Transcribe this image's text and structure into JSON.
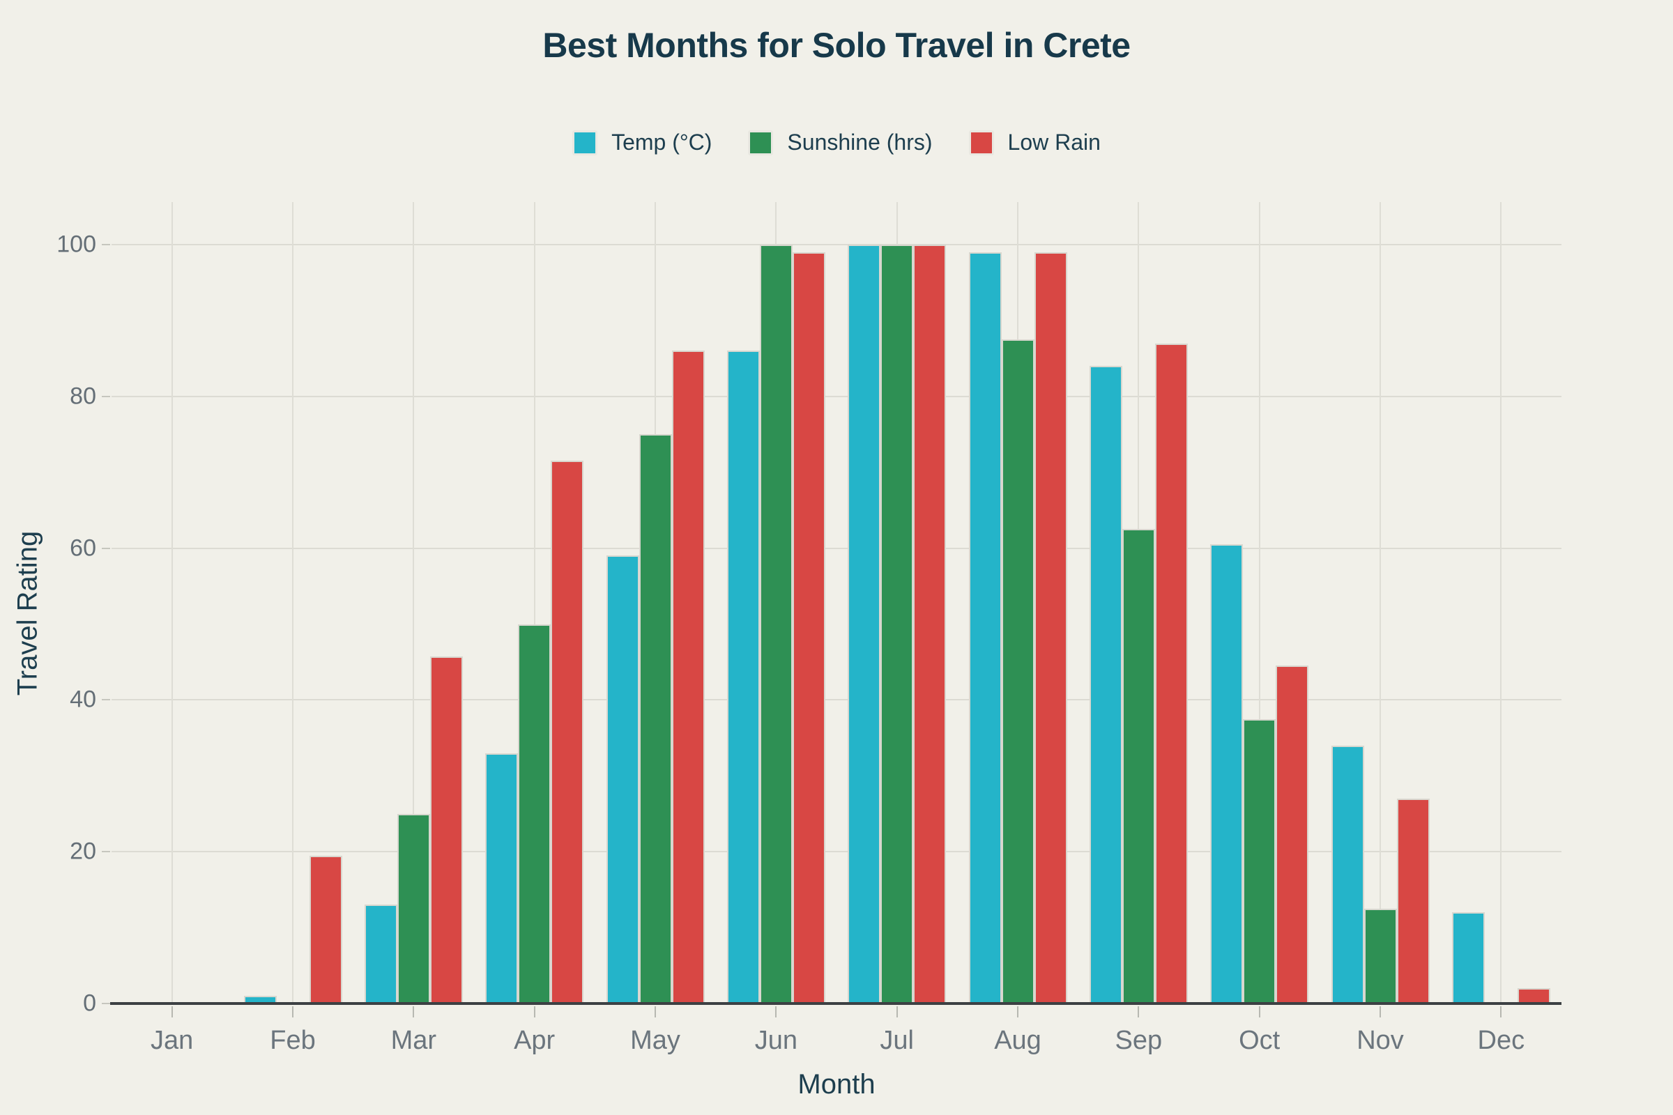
{
  "page": {
    "background": "#f1f0e9"
  },
  "chart_data": {
    "type": "bar",
    "title": "Best Months for Solo Travel in Crete",
    "xlabel": "Month",
    "ylabel": "Travel Rating",
    "categories": [
      "Jan",
      "Feb",
      "Mar",
      "Apr",
      "May",
      "Jun",
      "Jul",
      "Aug",
      "Sep",
      "Oct",
      "Nov",
      "Dec"
    ],
    "series": [
      {
        "name": "Temp (°C)",
        "color": "#24b4c9",
        "values": [
          0,
          1,
          13,
          33,
          59,
          86,
          100,
          99,
          84,
          60.5,
          34,
          12
        ]
      },
      {
        "name": "Sunshine (hrs)",
        "color": "#2e9054",
        "values": [
          0,
          0,
          25,
          50,
          75,
          100,
          100,
          87.5,
          62.5,
          37.5,
          12.5,
          0
        ]
      },
      {
        "name": "Low Rain",
        "color": "#d84744",
        "values": [
          0,
          19.5,
          45.7,
          71.5,
          86,
          99,
          100,
          99,
          87,
          44.5,
          27,
          2
        ]
      }
    ],
    "ylim": [
      0,
      100
    ],
    "y_ticks": [
      0,
      20,
      40,
      60,
      80,
      100
    ],
    "grid": true,
    "legend_position": "top"
  },
  "style": {
    "background": "#f1f0e9",
    "ink": "#17394a",
    "gridline": "#dcdbd3",
    "axis_line": "#3c4043",
    "x_tick_text": "#6b757d",
    "y_tick_text": "#646e76",
    "bar_border": "#d8d7cf"
  }
}
